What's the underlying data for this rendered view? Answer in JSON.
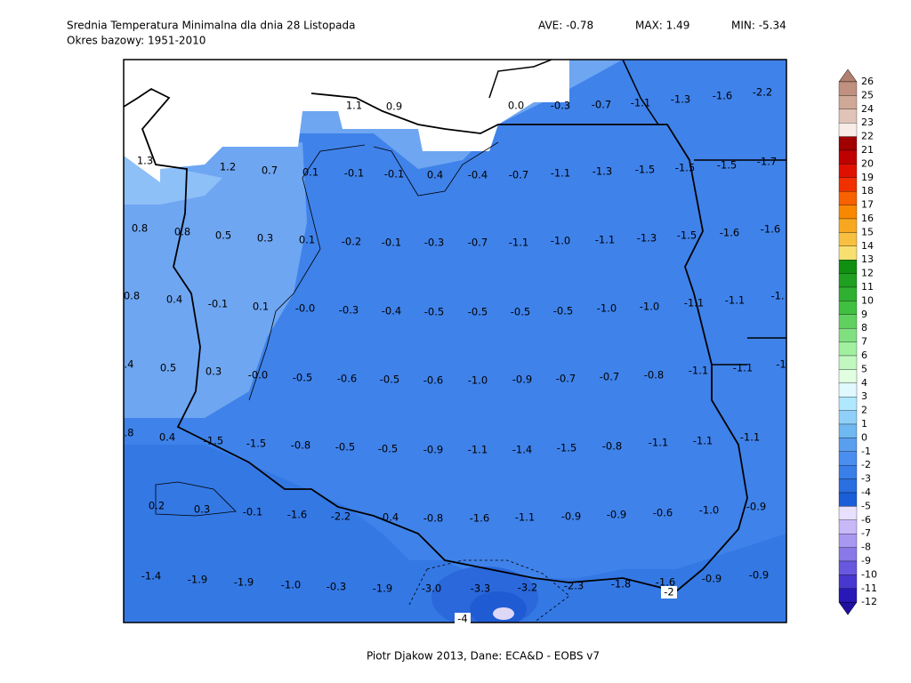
{
  "header": {
    "title": "Srednia Temperatura Minimalna dla dnia 28 Listopada",
    "subtitle": "Okres bazowy: 1951-2010",
    "ave": "AVE: -0.78",
    "max": "MAX: 1.49",
    "min": "MIN: -5.34"
  },
  "map": {
    "labels": [
      [
        "1.1",
        "0.9",
        "0.0",
        "-0.3",
        "-0.7",
        "-1.1",
        "-1.3",
        "-1.6",
        "-2.2"
      ],
      [
        "1.3",
        "1.2",
        "0.7",
        "0.1",
        "-0.1",
        "-0.1",
        "0.4",
        "-0.4",
        "-0.7",
        "-1.1",
        "-1.3",
        "-1.5",
        "-1.5",
        "-1.5",
        "-1.7"
      ],
      [
        "0.8",
        "0.8",
        "0.5",
        "0.3",
        "0.1",
        "-0.2",
        "-0.1",
        "-0.3",
        "-0.7",
        "-1.1",
        "-1.0",
        "-1.1",
        "-1.3",
        "-1.5",
        "-1.6",
        "-1.6"
      ],
      [
        "0.8",
        "0.4",
        "-0.1",
        "0.1",
        "-0.0",
        "-0.3",
        "-0.4",
        "-0.5",
        "-0.5",
        "-0.5",
        "-0.5",
        "-1.0",
        "-1.0",
        "-1.1",
        "-1.1",
        "-1."
      ],
      [
        ".4",
        "0.5",
        "0.3",
        "-0.0",
        "-0.5",
        "-0.6",
        "-0.5",
        "-0.6",
        "-1.0",
        "-0.9",
        "-0.7",
        "-0.7",
        "-0.8",
        "-1.1",
        "-1.1",
        "-1"
      ],
      [
        ".8",
        "0.4",
        "-1.5",
        "-1.5",
        "-0.8",
        "-0.5",
        "-0.5",
        "-0.9",
        "-1.1",
        "-1.4",
        "-1.5",
        "-0.8",
        "-1.1",
        "-1.1",
        "-1.1"
      ],
      [
        "0.2",
        "0.3",
        "-0.1",
        "-1.6",
        "-2.2",
        "-0.4",
        "-0.8",
        "-1.6",
        "-1.1",
        "-0.9",
        "-0.9",
        "-0.6",
        "-1.0",
        "-0.9"
      ],
      [
        "-1.4",
        "-1.9",
        "-1.9",
        "-1.0",
        "-0.3",
        "-1.9",
        "-3.0",
        "-3.3",
        "-3.2",
        "-2.3",
        "-1.8",
        "-1.6",
        "-0.9",
        "-0.9"
      ]
    ],
    "contour_labels": [
      "-2",
      "-4"
    ]
  },
  "colorbar": {
    "labels": [
      "26",
      "25",
      "24",
      "23",
      "22",
      "21",
      "20",
      "19",
      "18",
      "17",
      "16",
      "15",
      "14",
      "13",
      "12",
      "11",
      "10",
      "9",
      "8",
      "7",
      "6",
      "5",
      "4",
      "3",
      "2",
      "1",
      "0",
      "-1",
      "-2",
      "-3",
      "-4",
      "-5",
      "-6",
      "-7",
      "-8",
      "-9",
      "-10",
      "-11",
      "-12"
    ]
  },
  "footer": {
    "credit": "Piotr Djakow 2013, Dane: ECA&D - EOBS v7"
  }
}
